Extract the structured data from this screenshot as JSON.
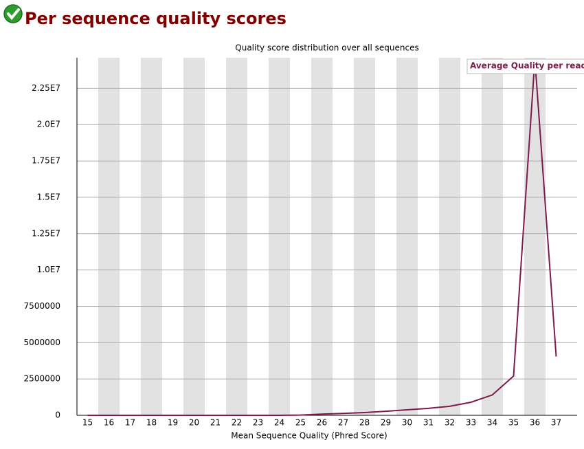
{
  "header": {
    "title": "Per sequence quality scores"
  },
  "chart_data": {
    "type": "line",
    "title": "Quality score distribution over all sequences",
    "x_label": "Mean Sequence Quality (Phred Score)",
    "categories": [
      "15",
      "16",
      "17",
      "18",
      "19",
      "20",
      "21",
      "22",
      "23",
      "24",
      "25",
      "26",
      "27",
      "28",
      "29",
      "30",
      "31",
      "32",
      "33",
      "34",
      "35",
      "36",
      "37"
    ],
    "series": [
      {
        "name": "Average Quality per read",
        "color": "#7b1c4a",
        "values": [
          0,
          0,
          0,
          0,
          0,
          0,
          0,
          0,
          0,
          0,
          20000,
          80000,
          130000,
          190000,
          280000,
          380000,
          480000,
          620000,
          900000,
          1400000,
          2700000,
          24500000,
          4050000
        ]
      }
    ],
    "ylim": [
      0,
      24600000
    ],
    "yticks": [
      0,
      2500000,
      5000000,
      7500000,
      {
        "value": 10000000,
        "label": "1.0E7"
      },
      {
        "value": 12500000,
        "label": "1.25E7"
      },
      {
        "value": 15000000,
        "label": "1.5E7"
      },
      {
        "value": 17500000,
        "label": "1.75E7"
      },
      {
        "value": 20000000,
        "label": "2.0E7"
      },
      {
        "value": 22500000,
        "label": "2.25E7"
      }
    ],
    "grid": true,
    "legend": "top-right"
  }
}
